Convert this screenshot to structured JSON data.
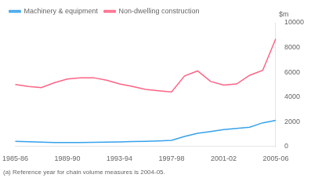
{
  "chart_data": {
    "type": "line",
    "ylabel": "$m",
    "footnote": "(a) Reference year for chain volume measures is 2004-05.",
    "categories": [
      "1985-86",
      null,
      null,
      null,
      "1989-90",
      null,
      null,
      null,
      "1993-94",
      null,
      null,
      null,
      "1997-98",
      null,
      null,
      null,
      "2001-02",
      null,
      null,
      null,
      "2005-06"
    ],
    "series": [
      {
        "name": "Machinery & equipment",
        "values": [
          400,
          370,
          340,
          310,
          300,
          310,
          320,
          340,
          360,
          380,
          400,
          430,
          480,
          800,
          1050,
          1200,
          1350,
          1450,
          1550,
          1900,
          2100
        ]
      },
      {
        "name": "Non-dwelling construction",
        "values": [
          5000,
          4850,
          4750,
          5150,
          5450,
          5550,
          5550,
          5350,
          5050,
          4850,
          4600,
          4500,
          4400,
          5700,
          6100,
          5250,
          4950,
          5050,
          5750,
          6150,
          8700
        ]
      }
    ],
    "ylim": [
      0,
      10000
    ],
    "yticks": [
      0,
      2000,
      4000,
      6000,
      8000,
      10000
    ],
    "grid": false,
    "legend": "top-left"
  }
}
